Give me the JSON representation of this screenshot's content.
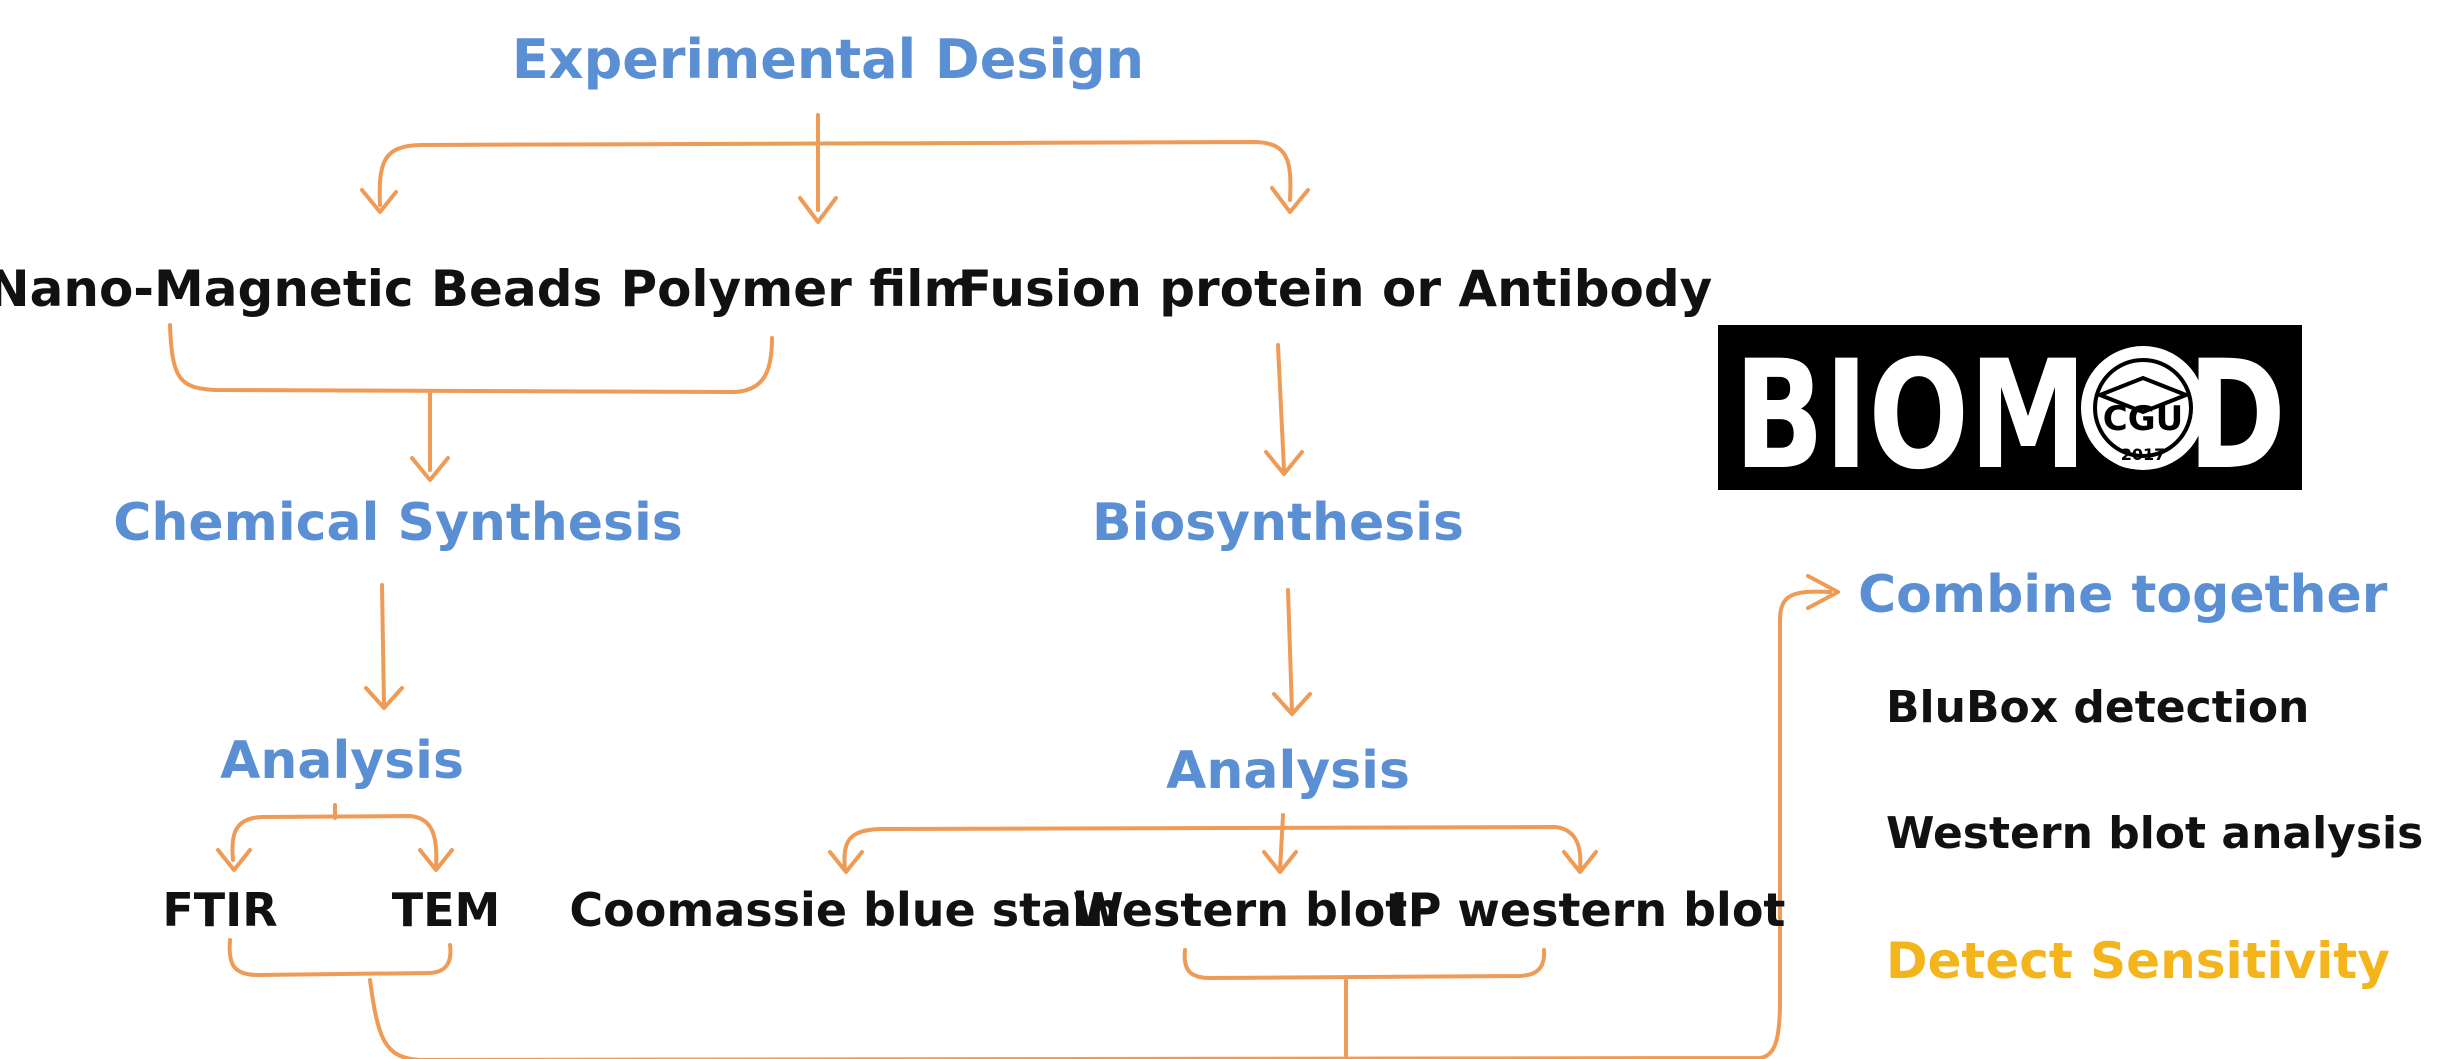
{
  "title": "Experimental  Design",
  "branches": {
    "beads": "Nano-Magnetic Beads",
    "polymer": "Polymer film",
    "fusion": "Fusion protein or Antibody"
  },
  "chemical": {
    "label": "Chemical Synthesis",
    "analysis": "Analysis",
    "methods": [
      "FTIR",
      "TEM"
    ]
  },
  "bio": {
    "label": "Biosynthesis",
    "analysis": "Analysis",
    "methods": [
      "Coomassie blue stain",
      "Western blot",
      "IP western blot"
    ]
  },
  "combine": {
    "label": "Combine together",
    "items": [
      "BluBox detection",
      "Western blot analysis"
    ],
    "highlight": "Detect Sensitivity"
  },
  "logo": {
    "text": "BIOMOD",
    "badge": "CGU",
    "year": "2017"
  },
  "colors": {
    "heading": "#5b8fd4",
    "arrow": "#ef9a55",
    "highlight": "#f3b41c",
    "text": "#111111"
  }
}
